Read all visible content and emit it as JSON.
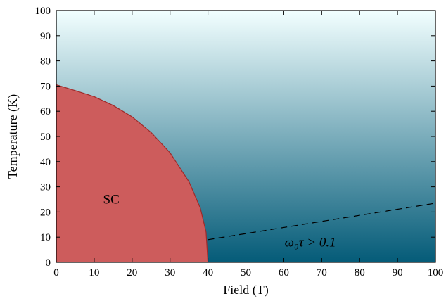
{
  "chart_data": {
    "type": "area",
    "title": "",
    "xlabel": "Field (T)",
    "ylabel": "Temperature (K)",
    "xlim": [
      0,
      100
    ],
    "ylim": [
      0,
      100
    ],
    "xticks": [
      0,
      10,
      20,
      30,
      40,
      50,
      60,
      70,
      80,
      90,
      100
    ],
    "yticks": [
      0,
      10,
      20,
      30,
      40,
      50,
      60,
      70,
      80,
      90,
      100
    ],
    "grid": false,
    "legend": "none",
    "background_gradient": {
      "top_color": "#f2ffff",
      "bottom_color": "#045b78"
    },
    "series": [
      {
        "region_label": "SC",
        "fill_color": "#cd5c5c",
        "edge_color": "#9e2a2a",
        "boundary": {
          "x": [
            0,
            5,
            10,
            15,
            20,
            25,
            30,
            35,
            38,
            39.5,
            40
          ],
          "y": [
            70.5,
            68.2,
            65.8,
            62.3,
            57.8,
            51.6,
            43.5,
            32.0,
            21.5,
            12.0,
            0
          ]
        }
      },
      {
        "line_style": "dashed",
        "line_color": "#000000",
        "x": [
          40,
          100
        ],
        "y": [
          9,
          23.5
        ]
      }
    ],
    "annotations": [
      {
        "text": "SC",
        "x": 14.5,
        "y": 25
      },
      {
        "text": "ω₀τ  >  0.1",
        "x": 67,
        "y": 8
      }
    ]
  }
}
